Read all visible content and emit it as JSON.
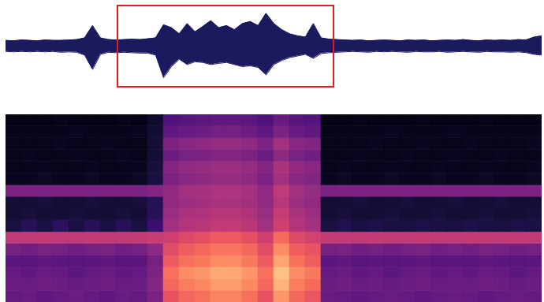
{
  "chart_data": [
    {
      "type": "area",
      "x": [
        0,
        0.5,
        1,
        1.5,
        2,
        2.5,
        3,
        3.5,
        4,
        4.5,
        5,
        5.5,
        6,
        6.5,
        7,
        7.5,
        8,
        8.5,
        9,
        9.5,
        10,
        10.5,
        11,
        11.5,
        12,
        12.5,
        13,
        13.5,
        14,
        14.5,
        15,
        15.5,
        16,
        16.5,
        17,
        17.5,
        18,
        18.5,
        19,
        19.5,
        20,
        20.5,
        21,
        21.5,
        22,
        22.5,
        23,
        23.5,
        24,
        24.5,
        25,
        25.5,
        26,
        26.5,
        27,
        27.5,
        28,
        28.5,
        29,
        29.5,
        30,
        30.5,
        31,
        31.5,
        32,
        32.5,
        33,
        33.5,
        34
      ],
      "upper": [
        0.14,
        0.13,
        0.15,
        0.14,
        0.13,
        0.15,
        0.14,
        0.14,
        0.15,
        0.16,
        0.2,
        0.5,
        0.2,
        0.16,
        0.15,
        0.16,
        0.17,
        0.16,
        0.18,
        0.2,
        0.52,
        0.45,
        0.3,
        0.55,
        0.35,
        0.48,
        0.62,
        0.45,
        0.5,
        0.4,
        0.55,
        0.6,
        0.5,
        0.8,
        0.55,
        0.4,
        0.3,
        0.25,
        0.22,
        0.55,
        0.2,
        0.17,
        0.16,
        0.15,
        0.14,
        0.15,
        0.13,
        0.14,
        0.15,
        0.14,
        0.13,
        0.15,
        0.14,
        0.15,
        0.13,
        0.14,
        0.15,
        0.14,
        0.16,
        0.14,
        0.13,
        0.15,
        0.14,
        0.15,
        0.14,
        0.16,
        0.15,
        0.22,
        0.25
      ],
      "lower": [
        -0.13,
        -0.14,
        -0.13,
        -0.14,
        -0.13,
        -0.14,
        -0.13,
        -0.15,
        -0.14,
        -0.15,
        -0.22,
        -0.57,
        -0.2,
        -0.15,
        -0.16,
        -0.15,
        -0.16,
        -0.17,
        -0.17,
        -0.22,
        -0.77,
        -0.5,
        -0.32,
        -0.45,
        -0.38,
        -0.4,
        -0.45,
        -0.42,
        -0.4,
        -0.45,
        -0.5,
        -0.48,
        -0.52,
        -0.7,
        -0.45,
        -0.35,
        -0.28,
        -0.24,
        -0.2,
        -0.3,
        -0.18,
        -0.16,
        -0.15,
        -0.14,
        -0.13,
        -0.14,
        -0.15,
        -0.13,
        -0.14,
        -0.13,
        -0.14,
        -0.15,
        -0.13,
        -0.14,
        -0.14,
        -0.13,
        -0.15,
        -0.14,
        -0.13,
        -0.14,
        -0.15,
        -0.13,
        -0.14,
        -0.14,
        -0.15,
        -0.14,
        -0.16,
        -0.2,
        -0.22
      ],
      "color": "#1c1a5e",
      "xlim": [
        0,
        34
      ],
      "ylim": [
        -1,
        1
      ],
      "tick_labels": false,
      "highlight": {
        "x": [
          7.1,
          20.8
        ],
        "y": [
          -1,
          0.98
        ],
        "color": "#e8191c"
      }
    },
    {
      "type": "heatmap",
      "cells": [
        [
          0.3,
          0.31,
          0.29,
          0.3,
          0.32,
          0.3,
          0.29,
          0.31,
          0.3,
          0.36,
          0.63,
          0.68,
          0.7,
          0.74,
          0.74,
          0.7,
          0.63,
          0.78,
          0.68,
          0.64,
          0.31,
          0.3,
          0.29,
          0.3,
          0.31,
          0.3,
          0.29,
          0.3,
          0.31,
          0.3,
          0.29,
          0.3,
          0.31,
          0.3
        ],
        [
          0.32,
          0.31,
          0.33,
          0.32,
          0.3,
          0.32,
          0.33,
          0.31,
          0.32,
          0.38,
          0.68,
          0.73,
          0.75,
          0.79,
          0.79,
          0.75,
          0.68,
          0.84,
          0.73,
          0.69,
          0.32,
          0.33,
          0.31,
          0.32,
          0.3,
          0.32,
          0.33,
          0.31,
          0.32,
          0.31,
          0.33,
          0.32,
          0.3,
          0.32
        ],
        [
          0.3,
          0.29,
          0.31,
          0.3,
          0.28,
          0.3,
          0.31,
          0.29,
          0.3,
          0.36,
          0.7,
          0.76,
          0.78,
          0.82,
          0.82,
          0.78,
          0.7,
          0.87,
          0.76,
          0.72,
          0.3,
          0.31,
          0.29,
          0.3,
          0.28,
          0.3,
          0.31,
          0.29,
          0.3,
          0.29,
          0.31,
          0.3,
          0.28,
          0.3
        ],
        [
          0.28,
          0.27,
          0.29,
          0.28,
          0.27,
          0.28,
          0.29,
          0.27,
          0.28,
          0.34,
          0.65,
          0.7,
          0.72,
          0.76,
          0.76,
          0.72,
          0.65,
          0.81,
          0.7,
          0.66,
          0.28,
          0.29,
          0.27,
          0.28,
          0.27,
          0.28,
          0.29,
          0.27,
          0.28,
          0.27,
          0.29,
          0.28,
          0.27,
          0.28
        ],
        [
          0.34,
          0.33,
          0.35,
          0.34,
          0.33,
          0.34,
          0.35,
          0.33,
          0.34,
          0.4,
          0.61,
          0.66,
          0.68,
          0.71,
          0.71,
          0.68,
          0.61,
          0.76,
          0.66,
          0.63,
          0.34,
          0.35,
          0.33,
          0.34,
          0.33,
          0.34,
          0.35,
          0.33,
          0.34,
          0.33,
          0.35,
          0.34,
          0.33,
          0.34
        ],
        [
          0.52,
          0.52,
          0.53,
          0.52,
          0.52,
          0.53,
          0.52,
          0.52,
          0.53,
          0.54,
          0.56,
          0.6,
          0.62,
          0.65,
          0.65,
          0.62,
          0.56,
          0.69,
          0.6,
          0.57,
          0.53,
          0.52,
          0.52,
          0.53,
          0.52,
          0.52,
          0.53,
          0.52,
          0.52,
          0.53,
          0.52,
          0.52,
          0.53,
          0.52
        ],
        [
          0.12,
          0.16,
          0.12,
          0.17,
          0.12,
          0.16,
          0.12,
          0.16,
          0.12,
          0.2,
          0.45,
          0.49,
          0.5,
          0.53,
          0.53,
          0.5,
          0.45,
          0.56,
          0.49,
          0.46,
          0.12,
          0.14,
          0.12,
          0.13,
          0.12,
          0.12,
          0.13,
          0.12,
          0.12,
          0.13,
          0.12,
          0.12,
          0.13,
          0.12
        ],
        [
          0.1,
          0.11,
          0.1,
          0.1,
          0.11,
          0.1,
          0.1,
          0.11,
          0.1,
          0.16,
          0.43,
          0.47,
          0.48,
          0.5,
          0.5,
          0.48,
          0.43,
          0.54,
          0.47,
          0.44,
          0.1,
          0.11,
          0.1,
          0.1,
          0.11,
          0.1,
          0.1,
          0.11,
          0.1,
          0.1,
          0.11,
          0.1,
          0.1,
          0.11
        ],
        [
          0.1,
          0.1,
          0.11,
          0.1,
          0.1,
          0.11,
          0.1,
          0.1,
          0.11,
          0.15,
          0.41,
          0.44,
          0.45,
          0.47,
          0.47,
          0.45,
          0.41,
          0.5,
          0.44,
          0.41,
          0.1,
          0.1,
          0.11,
          0.1,
          0.1,
          0.11,
          0.1,
          0.1,
          0.11,
          0.1,
          0.1,
          0.11,
          0.1,
          0.1
        ],
        [
          0.36,
          0.36,
          0.35,
          0.36,
          0.36,
          0.35,
          0.36,
          0.36,
          0.35,
          0.38,
          0.41,
          0.45,
          0.46,
          0.48,
          0.48,
          0.46,
          0.41,
          0.52,
          0.45,
          0.42,
          0.35,
          0.36,
          0.36,
          0.35,
          0.36,
          0.36,
          0.35,
          0.36,
          0.36,
          0.35,
          0.36,
          0.36,
          0.35,
          0.36
        ],
        [
          0.06,
          0.06,
          0.07,
          0.06,
          0.06,
          0.07,
          0.06,
          0.06,
          0.07,
          0.12,
          0.36,
          0.39,
          0.4,
          0.42,
          0.42,
          0.4,
          0.36,
          0.45,
          0.39,
          0.37,
          0.06,
          0.07,
          0.06,
          0.06,
          0.07,
          0.06,
          0.06,
          0.07,
          0.06,
          0.06,
          0.07,
          0.06,
          0.06,
          0.07
        ],
        [
          0.05,
          0.05,
          0.06,
          0.05,
          0.05,
          0.06,
          0.05,
          0.05,
          0.06,
          0.11,
          0.38,
          0.41,
          0.42,
          0.44,
          0.44,
          0.42,
          0.38,
          0.47,
          0.41,
          0.39,
          0.05,
          0.06,
          0.05,
          0.05,
          0.06,
          0.05,
          0.05,
          0.06,
          0.05,
          0.05,
          0.06,
          0.05,
          0.05,
          0.06
        ],
        [
          0.05,
          0.06,
          0.05,
          0.05,
          0.06,
          0.05,
          0.05,
          0.06,
          0.05,
          0.1,
          0.32,
          0.35,
          0.36,
          0.38,
          0.38,
          0.36,
          0.32,
          0.4,
          0.35,
          0.33,
          0.05,
          0.05,
          0.06,
          0.05,
          0.05,
          0.06,
          0.05,
          0.05,
          0.06,
          0.05,
          0.05,
          0.06,
          0.05,
          0.05
        ],
        [
          0.05,
          0.05,
          0.05,
          0.06,
          0.05,
          0.05,
          0.06,
          0.05,
          0.05,
          0.1,
          0.36,
          0.39,
          0.4,
          0.42,
          0.42,
          0.4,
          0.36,
          0.45,
          0.39,
          0.37,
          0.05,
          0.05,
          0.05,
          0.06,
          0.05,
          0.05,
          0.06,
          0.05,
          0.05,
          0.06,
          0.05,
          0.05,
          0.05,
          0.06
        ],
        [
          0.05,
          0.05,
          0.05,
          0.05,
          0.06,
          0.05,
          0.05,
          0.05,
          0.06,
          0.09,
          0.29,
          0.31,
          0.32,
          0.34,
          0.34,
          0.32,
          0.29,
          0.36,
          0.31,
          0.29,
          0.05,
          0.05,
          0.05,
          0.05,
          0.06,
          0.05,
          0.05,
          0.05,
          0.06,
          0.05,
          0.05,
          0.05,
          0.05,
          0.05
        ],
        [
          0.04,
          0.04,
          0.04,
          0.05,
          0.04,
          0.04,
          0.04,
          0.05,
          0.04,
          0.08,
          0.25,
          0.27,
          0.28,
          0.29,
          0.29,
          0.28,
          0.25,
          0.31,
          0.27,
          0.26,
          0.04,
          0.04,
          0.05,
          0.04,
          0.04,
          0.04,
          0.05,
          0.04,
          0.04,
          0.04,
          0.05,
          0.04,
          0.04,
          0.04
        ]
      ],
      "xlim": [
        0,
        34
      ],
      "ylim": [
        0,
        16
      ],
      "zlim": [
        0,
        1
      ],
      "color": "magma",
      "tick_labels": false
    }
  ]
}
